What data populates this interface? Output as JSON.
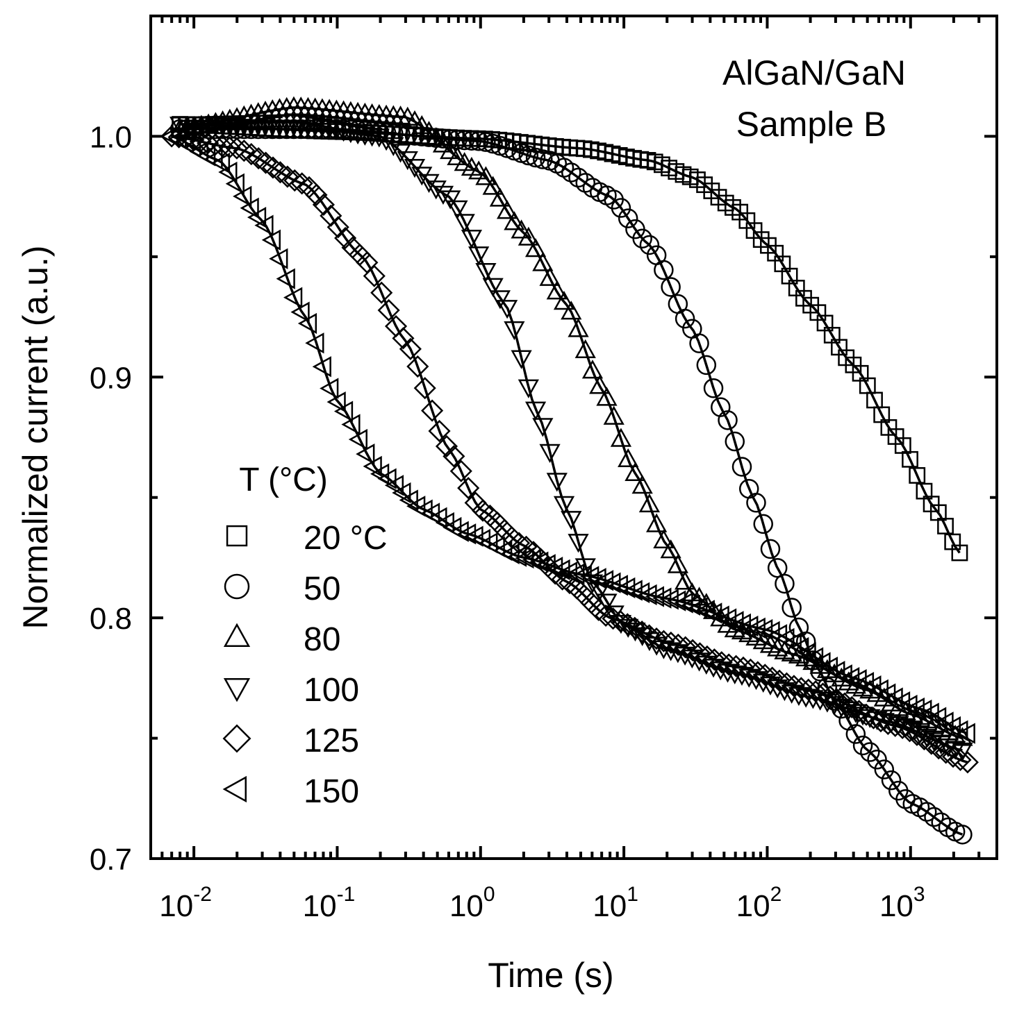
{
  "chart_data": {
    "type": "scatter",
    "title": "",
    "annotation": [
      "AlGaN/GaN",
      "Sample B"
    ],
    "xlabel": "Time (s)",
    "ylabel": "Normalized current (a.u.)",
    "xscale": "log",
    "xlim": [
      0.005,
      4000
    ],
    "ylim": [
      0.7,
      1.05
    ],
    "xticks": [
      {
        "value": 0.01,
        "base": "10",
        "exp": "-2"
      },
      {
        "value": 0.1,
        "base": "10",
        "exp": "-1"
      },
      {
        "value": 1,
        "base": "10",
        "exp": "0"
      },
      {
        "value": 10,
        "base": "10",
        "exp": "1"
      },
      {
        "value": 100,
        "base": "10",
        "exp": "2"
      },
      {
        "value": 1000,
        "base": "10",
        "exp": "3"
      }
    ],
    "yticks": [
      {
        "value": 0.7,
        "label": "0.7"
      },
      {
        "value": 0.8,
        "label": "0.8"
      },
      {
        "value": 0.9,
        "label": "0.9"
      },
      {
        "value": 1.0,
        "label": "1.0"
      }
    ],
    "legend": {
      "title": "T (°C)",
      "placement": "bottom-left"
    },
    "series": [
      {
        "name": "20 °C",
        "marker": "square",
        "x": [
          0.008,
          0.1,
          1,
          5,
          15,
          30,
          60,
          100,
          200,
          400,
          800,
          1500,
          2200
        ],
        "y": [
          1.005,
          1.002,
          0.999,
          0.995,
          0.99,
          0.983,
          0.97,
          0.955,
          0.93,
          0.905,
          0.875,
          0.845,
          0.827
        ]
      },
      {
        "name": "50",
        "marker": "circle",
        "x": [
          0.008,
          0.1,
          1,
          3,
          8,
          15,
          30,
          50,
          80,
          120,
          170,
          220,
          300,
          500,
          1000,
          2300
        ],
        "y": [
          1.003,
          1.003,
          0.998,
          0.99,
          0.975,
          0.955,
          0.92,
          0.885,
          0.85,
          0.82,
          0.795,
          0.78,
          0.765,
          0.745,
          0.723,
          0.71
        ]
      },
      {
        "name": "80",
        "marker": "triangle-up",
        "x": [
          0.008,
          0.05,
          0.3,
          1,
          2,
          4,
          7,
          12,
          20,
          30,
          60,
          150,
          500,
          1000,
          2300
        ],
        "y": [
          1.003,
          1.012,
          1.008,
          0.985,
          0.96,
          0.93,
          0.895,
          0.86,
          0.83,
          0.81,
          0.795,
          0.785,
          0.77,
          0.76,
          0.75
        ]
      },
      {
        "name": "100",
        "marker": "triangle-down",
        "x": [
          0.008,
          0.05,
          0.2,
          0.6,
          1.5,
          2.5,
          4,
          6,
          10,
          20,
          60,
          200,
          700,
          2300
        ],
        "y": [
          1.005,
          1.006,
          1.0,
          0.975,
          0.93,
          0.885,
          0.845,
          0.815,
          0.797,
          0.787,
          0.777,
          0.767,
          0.757,
          0.745
        ]
      },
      {
        "name": "125",
        "marker": "diamond",
        "x": [
          0.007,
          0.02,
          0.06,
          0.15,
          0.3,
          0.6,
          1,
          2,
          4,
          8,
          20,
          60,
          200,
          800,
          2500
        ],
        "y": [
          1.0,
          0.995,
          0.98,
          0.95,
          0.915,
          0.87,
          0.845,
          0.83,
          0.815,
          0.8,
          0.79,
          0.78,
          0.77,
          0.755,
          0.74
        ]
      },
      {
        "name": "150",
        "marker": "triangle-left",
        "x": [
          0.007,
          0.015,
          0.03,
          0.06,
          0.1,
          0.2,
          0.4,
          0.8,
          2,
          5,
          20,
          100,
          400,
          1200,
          2500
        ],
        "y": [
          1.0,
          0.99,
          0.965,
          0.925,
          0.89,
          0.86,
          0.845,
          0.835,
          0.825,
          0.818,
          0.808,
          0.795,
          0.775,
          0.762,
          0.752
        ]
      }
    ]
  }
}
